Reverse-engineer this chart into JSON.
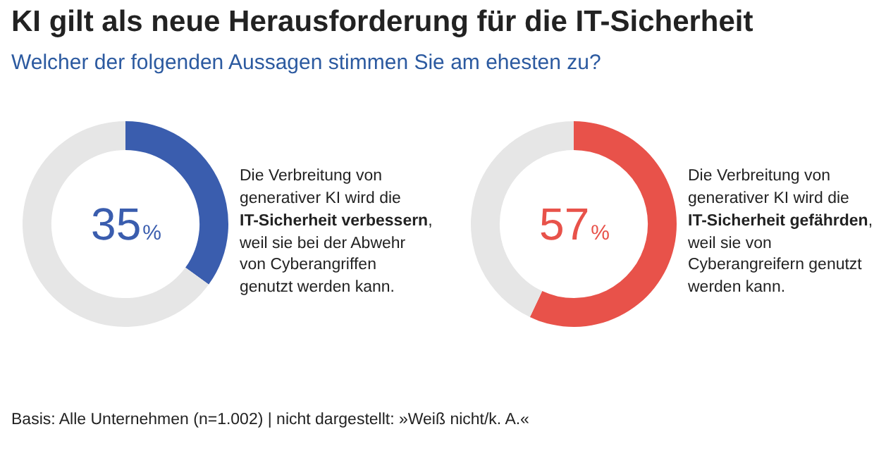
{
  "chart_data": [
    {
      "type": "donut",
      "title": "KI gilt als neue Herausforderung für die IT-Sicherheit",
      "subtitle": "Welcher der folgenden Aussagen stimmen Sie am ehesten zu?",
      "categories": [
        null,
        null
      ],
      "values": [
        35,
        65
      ],
      "colors": [
        "#3a5dae",
        "#e6e6e6"
      ],
      "value_labels": [
        "35%",
        null
      ],
      "annotations": [
        "Die Verbreitung von generativer KI wird die",
        "IT-Sicherheit verbessern",
        ", weil sie bei der Abwehr von Cyberangriffen genutzt werden kann.",
        "Basis: Alle Unternehmen (n=1.002) | nicht dargestellt: »Weiß nicht/k. A.«"
      ]
    },
    {
      "type": "donut",
      "categories": [
        null,
        null
      ],
      "values": [
        57,
        43
      ],
      "colors": [
        "#e8524a",
        "#e6e6e6"
      ],
      "value_labels": [
        "57%",
        null
      ],
      "annotations": [
        "Die Verbreitung von generativer KI wird die",
        "IT-Sicherheit gefährden",
        ", weil sie von Cyberangreifern genutzt werden kann."
      ]
    }
  ]
}
